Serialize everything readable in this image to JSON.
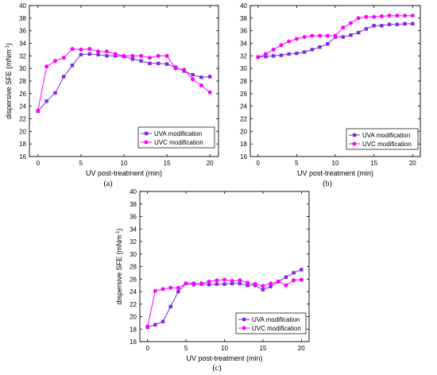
{
  "chart_data": [
    {
      "type": "line",
      "panel_label": "(a)",
      "xlabel": "UV post-treatment (min)",
      "ylabel": "dispersive SFE (mNm",
      "ylabel_sup": "-1",
      "ylabel_close": ")",
      "xlim": [
        -1,
        21
      ],
      "ylim": [
        16,
        40
      ],
      "xticks": [
        0,
        5,
        10,
        15,
        20
      ],
      "yticks": [
        16,
        18,
        20,
        22,
        24,
        26,
        28,
        30,
        32,
        34,
        36,
        38,
        40
      ],
      "legend_position": "bottom-right",
      "series": [
        {
          "name": "UVA modification",
          "marker": "square",
          "color": "#7b2be2",
          "x": [
            0,
            1,
            2,
            3,
            4,
            5,
            6,
            7,
            8,
            9,
            10,
            11,
            12,
            13,
            14,
            15,
            16,
            17,
            18,
            19,
            20
          ],
          "y": [
            23.2,
            24.8,
            26.1,
            28.7,
            30.5,
            32.2,
            32.3,
            32.2,
            32.0,
            32.0,
            31.9,
            31.5,
            31.2,
            30.8,
            30.8,
            30.7,
            30.2,
            29.6,
            29.0,
            28.6,
            28.7
          ]
        },
        {
          "name": "UVC modification",
          "marker": "circle",
          "color": "#ff00ff",
          "x": [
            0,
            1,
            2,
            3,
            4,
            5,
            6,
            7,
            8,
            9,
            10,
            11,
            12,
            13,
            14,
            15,
            16,
            17,
            18,
            19,
            20
          ],
          "y": [
            23.3,
            30.3,
            31.2,
            31.7,
            33.1,
            33.0,
            33.1,
            32.7,
            32.7,
            32.3,
            32.0,
            32.0,
            32.0,
            31.7,
            32.0,
            32.0,
            30.0,
            29.8,
            28.3,
            27.3,
            26.2
          ]
        }
      ]
    },
    {
      "type": "line",
      "panel_label": "(b)",
      "xlabel": "UV post-treatment (min)",
      "ylabel": "",
      "xlim": [
        -1,
        21
      ],
      "ylim": [
        16,
        40
      ],
      "xticks": [
        0,
        5,
        10,
        15,
        20
      ],
      "yticks": [
        16,
        18,
        20,
        22,
        24,
        26,
        28,
        30,
        32,
        34,
        36,
        38,
        40
      ],
      "legend_position": "bottom-right",
      "series": [
        {
          "name": "UVA modification",
          "marker": "square",
          "color": "#7b2be2",
          "x": [
            0,
            1,
            2,
            3,
            4,
            5,
            6,
            7,
            8,
            9,
            10,
            11,
            12,
            13,
            14,
            15,
            16,
            17,
            18,
            19,
            20
          ],
          "y": [
            31.8,
            31.9,
            32.0,
            32.1,
            32.3,
            32.4,
            32.6,
            33.0,
            33.4,
            33.9,
            35.0,
            35.0,
            35.3,
            35.7,
            36.3,
            36.8,
            36.8,
            37.0,
            37.0,
            37.1,
            37.1
          ]
        },
        {
          "name": "UVC modification",
          "marker": "circle",
          "color": "#ff00ff",
          "x": [
            0,
            1,
            2,
            3,
            4,
            5,
            6,
            7,
            8,
            9,
            10,
            11,
            12,
            13,
            14,
            15,
            16,
            17,
            18,
            19,
            20
          ],
          "y": [
            31.8,
            32.3,
            33.0,
            33.7,
            34.3,
            34.7,
            35.0,
            35.2,
            35.2,
            35.2,
            35.2,
            36.5,
            37.2,
            38.0,
            38.2,
            38.2,
            38.3,
            38.4,
            38.4,
            38.4,
            38.4
          ]
        }
      ]
    },
    {
      "type": "line",
      "panel_label": "(c)",
      "xlabel": "UV post-treatment (min)",
      "ylabel": "dispersive SFE (mNm",
      "ylabel_sup": "-1",
      "ylabel_close": ")",
      "xlim": [
        -1,
        21
      ],
      "ylim": [
        16,
        40
      ],
      "xticks": [
        0,
        5,
        10,
        15,
        20
      ],
      "yticks": [
        16,
        18,
        20,
        22,
        24,
        26,
        28,
        30,
        32,
        34,
        36,
        38,
        40
      ],
      "legend_position": "bottom-right",
      "series": [
        {
          "name": "UVA modification",
          "marker": "square",
          "color": "#7b2be2",
          "x": [
            0,
            1,
            2,
            3,
            4,
            5,
            6,
            7,
            8,
            9,
            10,
            11,
            12,
            13,
            14,
            15,
            16,
            17,
            18,
            19,
            20
          ],
          "y": [
            18.3,
            18.7,
            19.2,
            21.6,
            24.0,
            25.3,
            25.3,
            25.2,
            25.1,
            25.2,
            25.2,
            25.3,
            25.3,
            25.0,
            25.0,
            24.3,
            24.8,
            25.6,
            26.3,
            27.0,
            27.5
          ]
        },
        {
          "name": "UVC modification",
          "marker": "circle",
          "color": "#ff00ff",
          "x": [
            0,
            1,
            2,
            3,
            4,
            5,
            6,
            7,
            8,
            9,
            10,
            11,
            12,
            13,
            14,
            15,
            16,
            17,
            18,
            19,
            20
          ],
          "y": [
            18.4,
            24.1,
            24.4,
            24.6,
            24.6,
            25.3,
            25.1,
            25.3,
            25.6,
            25.8,
            25.9,
            25.7,
            25.8,
            25.4,
            25.2,
            24.9,
            25.3,
            25.6,
            25.0,
            25.8,
            25.9
          ]
        }
      ]
    }
  ]
}
